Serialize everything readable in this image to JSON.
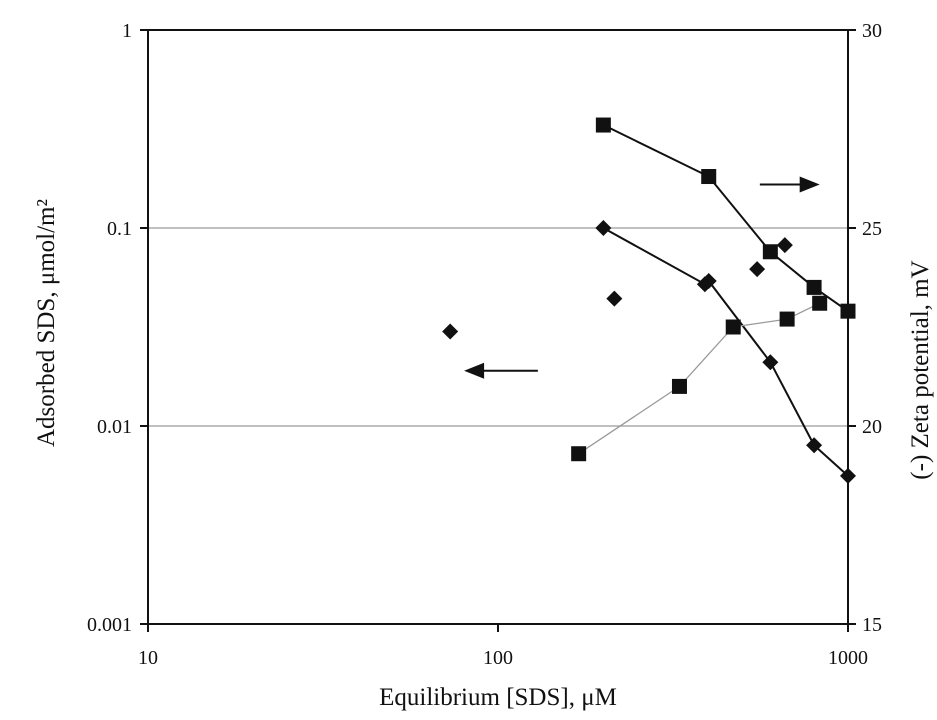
{
  "chart_data": {
    "type": "scatter",
    "x_scale": "log",
    "xlim": [
      10,
      1000
    ],
    "xlabel": "Equilibrium [SDS], μM",
    "x_ticks": [
      "10",
      "100",
      "1000"
    ],
    "ylabel_left": "Adsorbed SDS, μmol/m²",
    "y_left_scale": "log",
    "y_left_lim": [
      0.001,
      1
    ],
    "y_left_ticks": [
      "0.001",
      "0.01",
      "0.1",
      "1"
    ],
    "ylabel_right": "(-) Zeta potential, mV",
    "y_right_lim": [
      15,
      30
    ],
    "y_right_ticks": [
      "15",
      "20",
      "25",
      "30"
    ],
    "grid_y": [
      0.01,
      0.1
    ],
    "series": [
      {
        "marker": "square",
        "axis": "right",
        "line": "black",
        "x": [
          200,
          400,
          600,
          800,
          1000
        ],
        "y": [
          27.6,
          26.3,
          24.4,
          23.5,
          22.9
        ]
      },
      {
        "marker": "diamond",
        "axis": "left",
        "line": "black",
        "x": [
          200,
          390,
          400,
          600,
          800,
          1000
        ],
        "y": [
          0.1,
          0.052,
          0.054,
          0.021,
          0.008,
          0.0056
        ]
      },
      {
        "marker": "square",
        "axis": "right",
        "line": "gray",
        "x": [
          170,
          330,
          470,
          670,
          830
        ],
        "y": [
          19.3,
          21.0,
          22.5,
          22.7,
          23.1
        ]
      },
      {
        "marker": "diamond",
        "axis": "left",
        "line": "none",
        "x": [
          73,
          215,
          550,
          660
        ],
        "y": [
          0.03,
          0.044,
          0.062,
          0.082
        ]
      }
    ],
    "annotations": [
      {
        "type": "arrow",
        "direction": "right",
        "x": [
          560,
          830
        ],
        "y": 26.1,
        "axis": "right"
      },
      {
        "type": "arrow",
        "direction": "left",
        "x": [
          80,
          130
        ],
        "y": 0.019,
        "axis": "left"
      }
    ]
  }
}
